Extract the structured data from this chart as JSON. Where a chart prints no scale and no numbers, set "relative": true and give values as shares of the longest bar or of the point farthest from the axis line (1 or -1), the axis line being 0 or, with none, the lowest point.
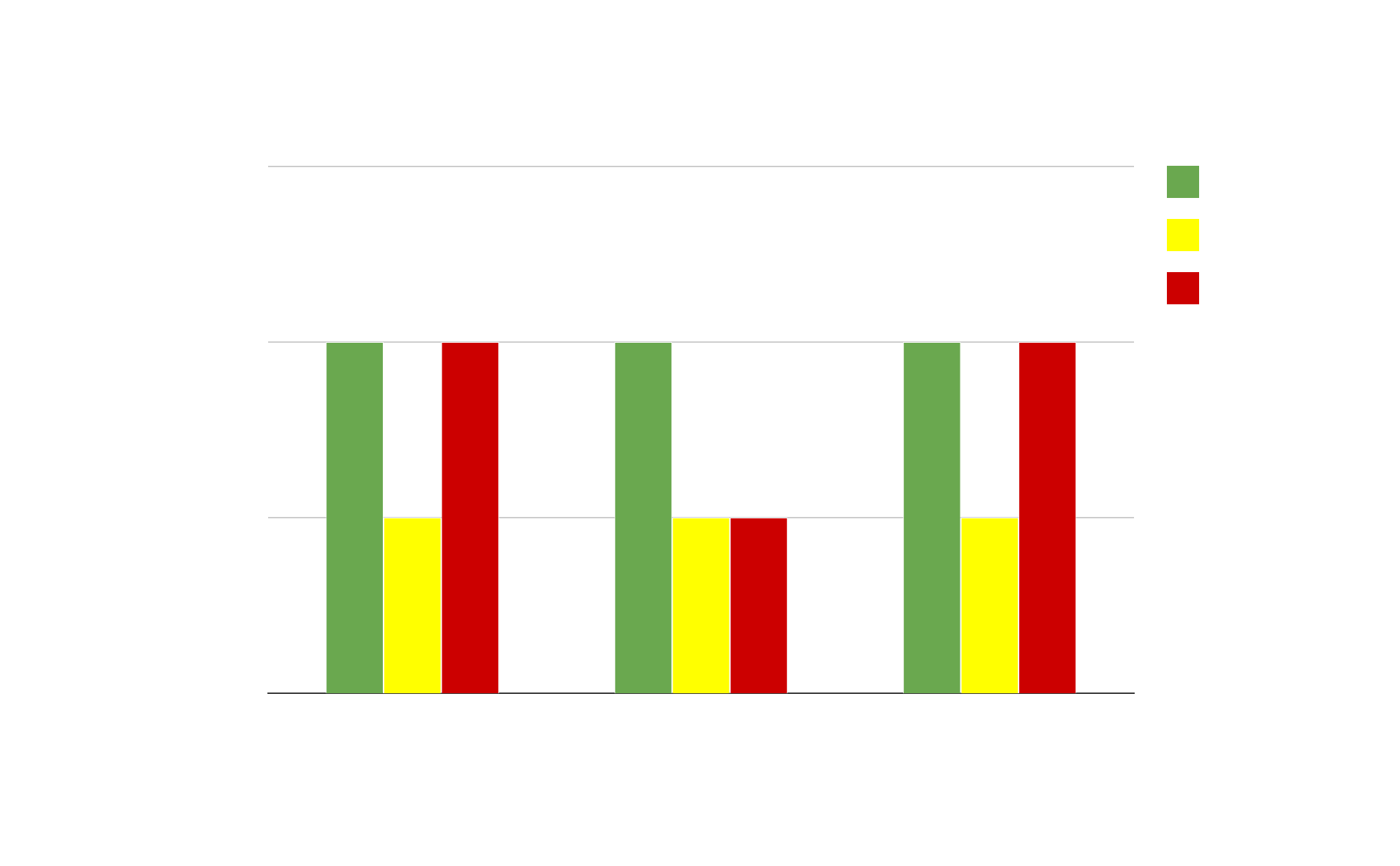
{
  "chart_data": {
    "type": "bar",
    "relative": true,
    "categories": [
      null,
      null,
      null
    ],
    "series": [
      {
        "color": "#6aa84f",
        "values": [
          1,
          1,
          1
        ]
      },
      {
        "color": "#ffff00",
        "values": [
          0.5,
          0.5,
          0.5
        ]
      },
      {
        "color": "#cc0000",
        "values": [
          1,
          0.5,
          1
        ]
      }
    ],
    "ref_lines": [
      {
        "axis": "y",
        "value": 0.5,
        "color": "#cccccc"
      },
      {
        "axis": "y",
        "value": 1,
        "color": "#cccccc"
      },
      {
        "axis": "y",
        "value": 1.5,
        "color": "#cccccc"
      }
    ]
  }
}
